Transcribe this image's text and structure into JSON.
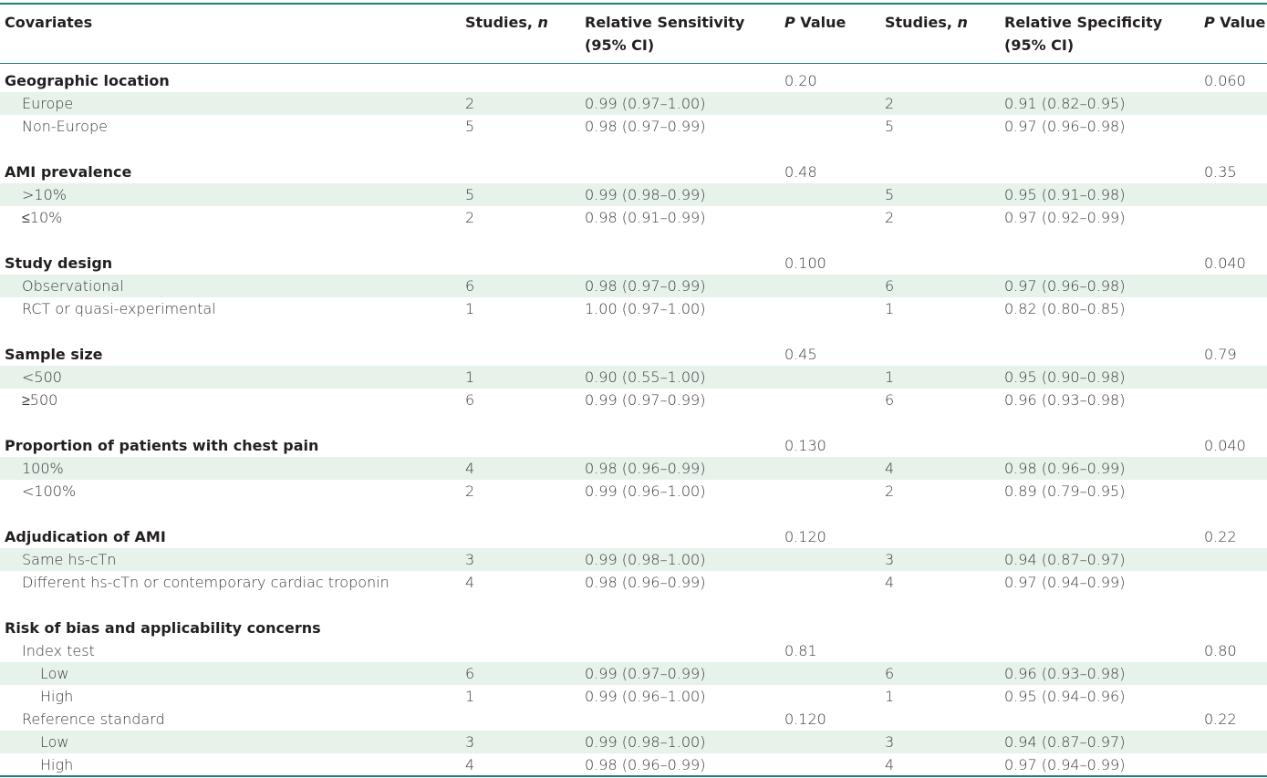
{
  "headers": {
    "covariates": "Covariates",
    "studies1": "Studies,",
    "studies1_n": "n",
    "rel_sens_line1": "Relative Sensitivity",
    "rel_sens_line2": "(95% CI)",
    "p1_p": "P",
    "p1_rest": " Value",
    "studies2": "Studies,",
    "studies2_n": "n",
    "rel_spec_line1": "Relative Specificity",
    "rel_spec_line2": "(95% CI)",
    "p2_p": "P",
    "p2_rest": " Value"
  },
  "rows": [
    {
      "type": "group",
      "label": "Geographic location",
      "studies1": "",
      "sens": "",
      "p1": "0.20",
      "studies2": "",
      "spec": "",
      "p2": "0.060"
    },
    {
      "type": "item",
      "label": "Europe",
      "studies1": "2",
      "sens": "0.99 (0.97–1.00)",
      "p1": "",
      "studies2": "2",
      "spec": "0.91 (0.82–0.95)",
      "p2": ""
    },
    {
      "type": "item",
      "label": "Non-Europe",
      "studies1": "5",
      "sens": "0.98 (0.97–0.99)",
      "p1": "",
      "studies2": "5",
      "spec": "0.97 (0.96–0.98)",
      "p2": ""
    },
    {
      "type": "spacer"
    },
    {
      "type": "group",
      "label": "AMI prevalence",
      "studies1": "",
      "sens": "",
      "p1": "0.48",
      "studies2": "",
      "spec": "",
      "p2": "0.35"
    },
    {
      "type": "item",
      "label": ">10%",
      "studies1": "5",
      "sens": "0.99 (0.98–0.99)",
      "p1": "",
      "studies2": "5",
      "spec": "0.95 (0.91–0.98)",
      "p2": ""
    },
    {
      "type": "item",
      "label": "≤10%",
      "studies1": "2",
      "sens": "0.98 (0.91–0.99)",
      "p1": "",
      "studies2": "2",
      "spec": "0.97 (0.92–0.99)",
      "p2": ""
    },
    {
      "type": "spacer"
    },
    {
      "type": "group",
      "label": "Study design",
      "studies1": "",
      "sens": "",
      "p1": "0.100",
      "studies2": "",
      "spec": "",
      "p2": "0.040"
    },
    {
      "type": "item",
      "label": "Observational",
      "studies1": "6",
      "sens": "0.98 (0.97–0.99)",
      "p1": "",
      "studies2": "6",
      "spec": "0.97 (0.96–0.98)",
      "p2": ""
    },
    {
      "type": "item",
      "label": "RCT or quasi-experimental",
      "studies1": "1",
      "sens": "1.00 (0.97–1.00)",
      "p1": "",
      "studies2": "1",
      "spec": "0.82 (0.80–0.85)",
      "p2": ""
    },
    {
      "type": "spacer"
    },
    {
      "type": "group",
      "label": "Sample size",
      "studies1": "",
      "sens": "",
      "p1": "0.45",
      "studies2": "",
      "spec": "",
      "p2": "0.79"
    },
    {
      "type": "item",
      "label": "<500",
      "studies1": "1",
      "sens": "0.90 (0.55–1.00)",
      "p1": "",
      "studies2": "1",
      "spec": "0.95 (0.90–0.98)",
      "p2": ""
    },
    {
      "type": "item",
      "label": "≥500",
      "studies1": "6",
      "sens": "0.99 (0.97–0.99)",
      "p1": "",
      "studies2": "6",
      "spec": "0.96 (0.93–0.98)",
      "p2": ""
    },
    {
      "type": "spacer"
    },
    {
      "type": "group",
      "label": "Proportion of patients with chest pain",
      "studies1": "",
      "sens": "",
      "p1": "0.130",
      "studies2": "",
      "spec": "",
      "p2": "0.040"
    },
    {
      "type": "item",
      "label": "100%",
      "studies1": "4",
      "sens": "0.98 (0.96–0.99)",
      "p1": "",
      "studies2": "4",
      "spec": "0.98 (0.96–0.99)",
      "p2": ""
    },
    {
      "type": "item",
      "label": "<100%",
      "studies1": "2",
      "sens": "0.99 (0.96–1.00)",
      "p1": "",
      "studies2": "2",
      "spec": "0.89 (0.79–0.95)",
      "p2": ""
    },
    {
      "type": "spacer"
    },
    {
      "type": "group",
      "label": "Adjudication of AMI",
      "studies1": "",
      "sens": "",
      "p1": "0.120",
      "studies2": "",
      "spec": "",
      "p2": "0.22"
    },
    {
      "type": "item",
      "label": "Same hs-cTn",
      "studies1": "3",
      "sens": "0.99 (0.98–1.00)",
      "p1": "",
      "studies2": "3",
      "spec": "0.94 (0.87–0.97)",
      "p2": ""
    },
    {
      "type": "item",
      "label": "Different hs-cTn or contemporary cardiac troponin",
      "studies1": "4",
      "sens": "0.98 (0.96–0.99)",
      "p1": "",
      "studies2": "4",
      "spec": "0.97 (0.94–0.99)",
      "p2": ""
    },
    {
      "type": "spacer"
    },
    {
      "type": "group",
      "label": "Risk of bias and applicability concerns",
      "studies1": "",
      "sens": "",
      "p1": "",
      "studies2": "",
      "spec": "",
      "p2": ""
    },
    {
      "type": "sub",
      "label": "Index test",
      "studies1": "",
      "sens": "",
      "p1": "0.81",
      "studies2": "",
      "spec": "",
      "p2": "0.80"
    },
    {
      "type": "subitem",
      "label": "Low",
      "studies1": "6",
      "sens": "0.99 (0.97–0.99)",
      "p1": "",
      "studies2": "6",
      "spec": "0.96 (0.93–0.98)",
      "p2": ""
    },
    {
      "type": "subitem",
      "label": "High",
      "studies1": "1",
      "sens": "0.99 (0.96–1.00)",
      "p1": "",
      "studies2": "1",
      "spec": "0.95 (0.94–0.96)",
      "p2": ""
    },
    {
      "type": "sub",
      "label": "Reference standard",
      "studies1": "",
      "sens": "",
      "p1": "0.120",
      "studies2": "",
      "spec": "",
      "p2": "0.22"
    },
    {
      "type": "subitem",
      "label": "Low",
      "studies1": "3",
      "sens": "0.99 (0.98–1.00)",
      "p1": "",
      "studies2": "3",
      "spec": "0.94 (0.87–0.97)",
      "p2": ""
    },
    {
      "type": "subitem",
      "label": "High",
      "studies1": "4",
      "sens": "0.98 (0.96–0.99)",
      "p1": "",
      "studies2": "4",
      "spec": "0.97 (0.94–0.99)",
      "p2": ""
    }
  ]
}
